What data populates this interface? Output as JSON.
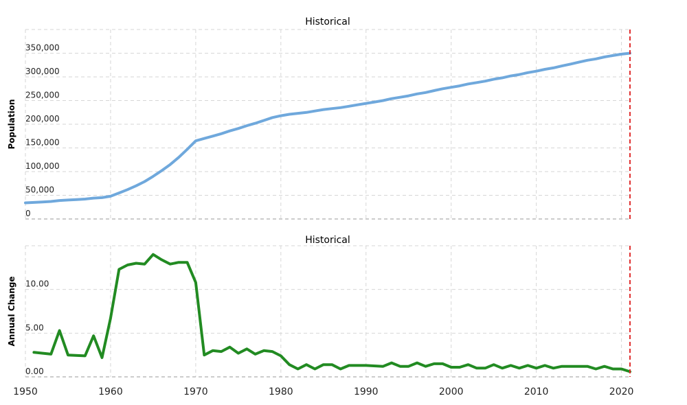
{
  "chart_data": [
    {
      "type": "line",
      "title": "Historical",
      "xlabel": "",
      "ylabel": "Population",
      "xlim": [
        1950,
        2021
      ],
      "ylim": [
        0,
        400000
      ],
      "yticks": [
        0,
        50000,
        100000,
        150000,
        200000,
        250000,
        300000,
        350000
      ],
      "ytick_labels": [
        "0",
        "50,000",
        "100,000",
        "150,000",
        "200,000",
        "250,000",
        "300,000",
        "350,000"
      ],
      "grid": true,
      "reference_line_x": 2021,
      "color": "#6fa8dc",
      "series": [
        {
          "x": [
            1950,
            1951,
            1952,
            1953,
            1954,
            1955,
            1956,
            1957,
            1958,
            1959,
            1960,
            1961,
            1962,
            1963,
            1964,
            1965,
            1966,
            1967,
            1968,
            1969,
            1970,
            1971,
            1972,
            1973,
            1974,
            1975,
            1976,
            1977,
            1978,
            1979,
            1980,
            1981,
            1982,
            1983,
            1984,
            1985,
            1986,
            1987,
            1988,
            1989,
            1990,
            1991,
            1992,
            1993,
            1994,
            1995,
            1996,
            1997,
            1998,
            1999,
            2000,
            2001,
            2002,
            2003,
            2004,
            2005,
            2006,
            2007,
            2008,
            2009,
            2010,
            2011,
            2012,
            2013,
            2014,
            2015,
            2016,
            2017,
            2018,
            2019,
            2020,
            2021
          ],
          "values": [
            34000,
            35000,
            36000,
            37000,
            39000,
            40000,
            41000,
            42000,
            44000,
            45000,
            48000,
            55000,
            62000,
            70000,
            79000,
            90000,
            102000,
            115000,
            130000,
            147000,
            165000,
            170000,
            175000,
            180000,
            186000,
            191000,
            197000,
            202000,
            208000,
            214000,
            218000,
            221000,
            223000,
            225000,
            228000,
            231000,
            233000,
            235000,
            238000,
            241000,
            244000,
            247000,
            250000,
            254000,
            257000,
            260000,
            264000,
            267000,
            271000,
            275000,
            278000,
            281000,
            285000,
            288000,
            291000,
            295000,
            298000,
            302000,
            305000,
            309000,
            312000,
            316000,
            319000,
            323000,
            327000,
            331000,
            335000,
            338000,
            342000,
            345000,
            348000,
            350000
          ]
        }
      ]
    },
    {
      "type": "line",
      "title": "Historical",
      "xlabel": "",
      "ylabel": "Annual Change",
      "xlim": [
        1950,
        2021
      ],
      "ylim": [
        0,
        15
      ],
      "yticks": [
        0,
        5,
        10
      ],
      "ytick_labels": [
        "0.00",
        "5.00",
        "10.00"
      ],
      "xticks": [
        1950,
        1960,
        1970,
        1980,
        1990,
        2000,
        2010,
        2020
      ],
      "xtick_labels": [
        "1950",
        "1960",
        "1970",
        "1980",
        "1990",
        "2000",
        "2010",
        "2020"
      ],
      "grid": true,
      "reference_line_x": 2021,
      "color": "#228b22",
      "series": [
        {
          "x": [
            1951,
            1953,
            1954,
            1955,
            1957,
            1958,
            1959,
            1960,
            1961,
            1962,
            1963,
            1964,
            1965,
            1966,
            1967,
            1968,
            1969,
            1970,
            1971,
            1972,
            1973,
            1974,
            1975,
            1976,
            1977,
            1978,
            1979,
            1980,
            1981,
            1982,
            1983,
            1984,
            1985,
            1986,
            1987,
            1988,
            1990,
            1992,
            1993,
            1994,
            1995,
            1996,
            1997,
            1998,
            1999,
            2000,
            2001,
            2002,
            2003,
            2004,
            2005,
            2006,
            2007,
            2008,
            2009,
            2010,
            2011,
            2012,
            2013,
            2015,
            2016,
            2017,
            2018,
            2019,
            2020,
            2021
          ],
          "values": [
            2.8,
            2.6,
            5.3,
            2.5,
            2.4,
            4.7,
            2.2,
            6.7,
            12.3,
            12.8,
            13.0,
            12.9,
            14.0,
            13.4,
            12.9,
            13.1,
            13.1,
            10.8,
            2.5,
            3.0,
            2.9,
            3.4,
            2.7,
            3.2,
            2.6,
            3.0,
            2.9,
            2.4,
            1.4,
            0.9,
            1.4,
            0.9,
            1.4,
            1.4,
            0.9,
            1.3,
            1.3,
            1.2,
            1.6,
            1.2,
            1.2,
            1.6,
            1.2,
            1.5,
            1.5,
            1.1,
            1.1,
            1.4,
            1.0,
            1.0,
            1.4,
            1.0,
            1.3,
            1.0,
            1.3,
            1.0,
            1.3,
            1.0,
            1.2,
            1.2,
            1.2,
            0.9,
            1.2,
            0.9,
            0.9,
            0.6
          ]
        }
      ]
    }
  ]
}
